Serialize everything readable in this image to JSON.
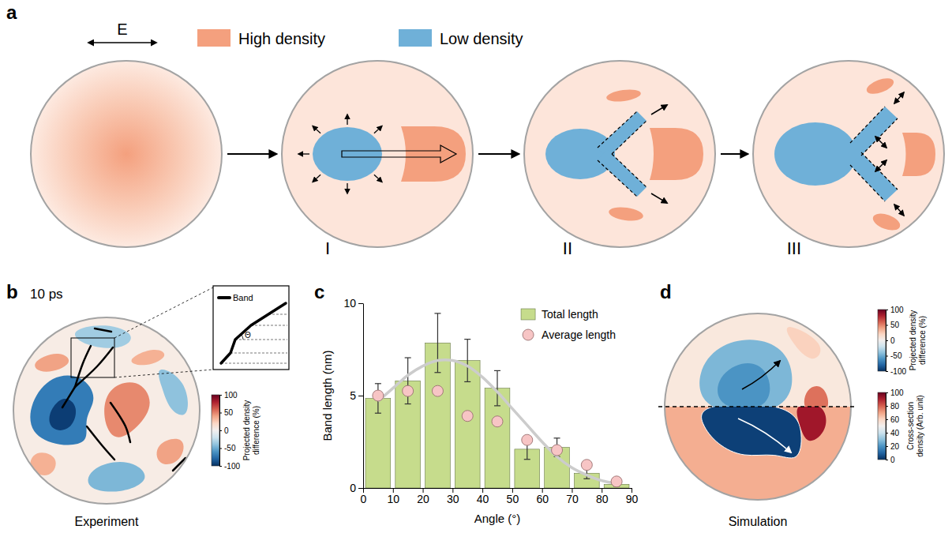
{
  "panels": {
    "a": {
      "letter": "a",
      "field_label": "E",
      "legend": [
        {
          "label": "High density",
          "color": "#f4a07e"
        },
        {
          "label": "Low density",
          "color": "#6fb0d8"
        }
      ],
      "stages": [
        "I",
        "II",
        "III"
      ]
    },
    "b": {
      "letter": "b",
      "time": "10 ps",
      "inset_legend": "Band",
      "angle_symbol": "Θ",
      "caption": "Experiment",
      "colorbar": {
        "label": "Projected density difference (%)",
        "range": [
          -100,
          100
        ],
        "ticks": [
          100,
          50,
          0,
          -50,
          -100
        ]
      }
    },
    "c": {
      "letter": "c"
    },
    "d": {
      "letter": "d",
      "caption": "Simulation",
      "colorbars": [
        {
          "label": "Projected density difference (%)",
          "range": [
            -100,
            100
          ],
          "ticks": [
            100,
            50,
            0,
            -50,
            -100
          ]
        },
        {
          "label": "Cross-section density (Arb. unit)",
          "range": [
            0,
            100
          ],
          "ticks": [
            100,
            80,
            60,
            40,
            20,
            0
          ]
        }
      ]
    }
  },
  "chart_data": {
    "type": "bar",
    "x_label": "Angle (°)",
    "y_label": "Band length (nm)",
    "x": [
      5,
      15,
      25,
      35,
      45,
      55,
      65,
      75,
      85
    ],
    "xlim": [
      0,
      90
    ],
    "xticks": [
      0,
      10,
      20,
      30,
      40,
      50,
      60,
      70,
      80,
      90
    ],
    "ylim": [
      0,
      10
    ],
    "yticks": [
      0,
      5,
      10
    ],
    "legend": "upper right",
    "series": [
      {
        "name": "Total length",
        "type": "bar",
        "color": "#c6dc8c",
        "values": [
          4.85,
          5.8,
          7.85,
          6.9,
          5.4,
          2.1,
          2.2,
          0.8,
          0.2
        ],
        "errors": [
          0.8,
          1.25,
          1.6,
          1.15,
          0.95,
          0.55,
          0.5,
          0.3,
          0.1
        ]
      },
      {
        "name": "Average length",
        "type": "scatter",
        "marker": "circle",
        "color": "#f7c5c5",
        "values": [
          5.0,
          5.25,
          5.25,
          3.9,
          3.6,
          2.6,
          2.05,
          1.25,
          0.35
        ]
      },
      {
        "type": "line",
        "line_style": "solid",
        "color": "#cccccc",
        "x": [
          5,
          10,
          15,
          20,
          25,
          30,
          35,
          40,
          45,
          50,
          55,
          60,
          65,
          70,
          75,
          80,
          85
        ],
        "values": [
          4.7,
          5.4,
          6.1,
          6.6,
          6.9,
          6.9,
          6.6,
          6.0,
          5.2,
          4.3,
          3.4,
          2.5,
          1.7,
          1.1,
          0.7,
          0.4,
          0.25
        ]
      }
    ]
  }
}
